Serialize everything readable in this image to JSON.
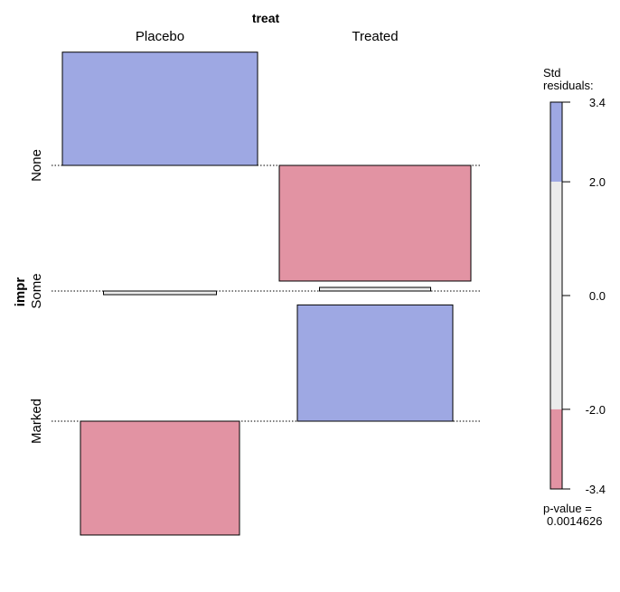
{
  "chart_data": {
    "type": "association",
    "title": "treat",
    "x_variable": "treat",
    "y_variable": "impr",
    "columns": [
      "Placebo",
      "Treated"
    ],
    "rows": [
      "None",
      "Some",
      "Marked"
    ],
    "residuals": [
      {
        "row": "None",
        "col": "Placebo",
        "value": 1.87
      },
      {
        "row": "None",
        "col": "Treated",
        "value": -1.91
      },
      {
        "row": "Some",
        "col": "Placebo",
        "value": -0.06
      },
      {
        "row": "Some",
        "col": "Treated",
        "value": 0.06
      },
      {
        "row": "Marked",
        "col": "Placebo",
        "value": -1.88
      },
      {
        "row": "Marked",
        "col": "Treated",
        "value": 1.92
      }
    ],
    "legend": {
      "title": "Std\nresiduals:",
      "ticks": [
        3.4,
        2.0,
        0.0,
        -2.0,
        -3.4
      ],
      "tick_labels": [
        "3.4",
        "2.0",
        "0.0",
        "-2.0",
        "-3.4"
      ],
      "range": [
        -3.4,
        3.4
      ],
      "pvalue_label": "p-value =",
      "pvalue": "0.0014626"
    },
    "colors": {
      "positive": "#9EA8E3",
      "negative": "#E293A3",
      "neutral": "#EBEBEB",
      "border": "#000000"
    }
  }
}
